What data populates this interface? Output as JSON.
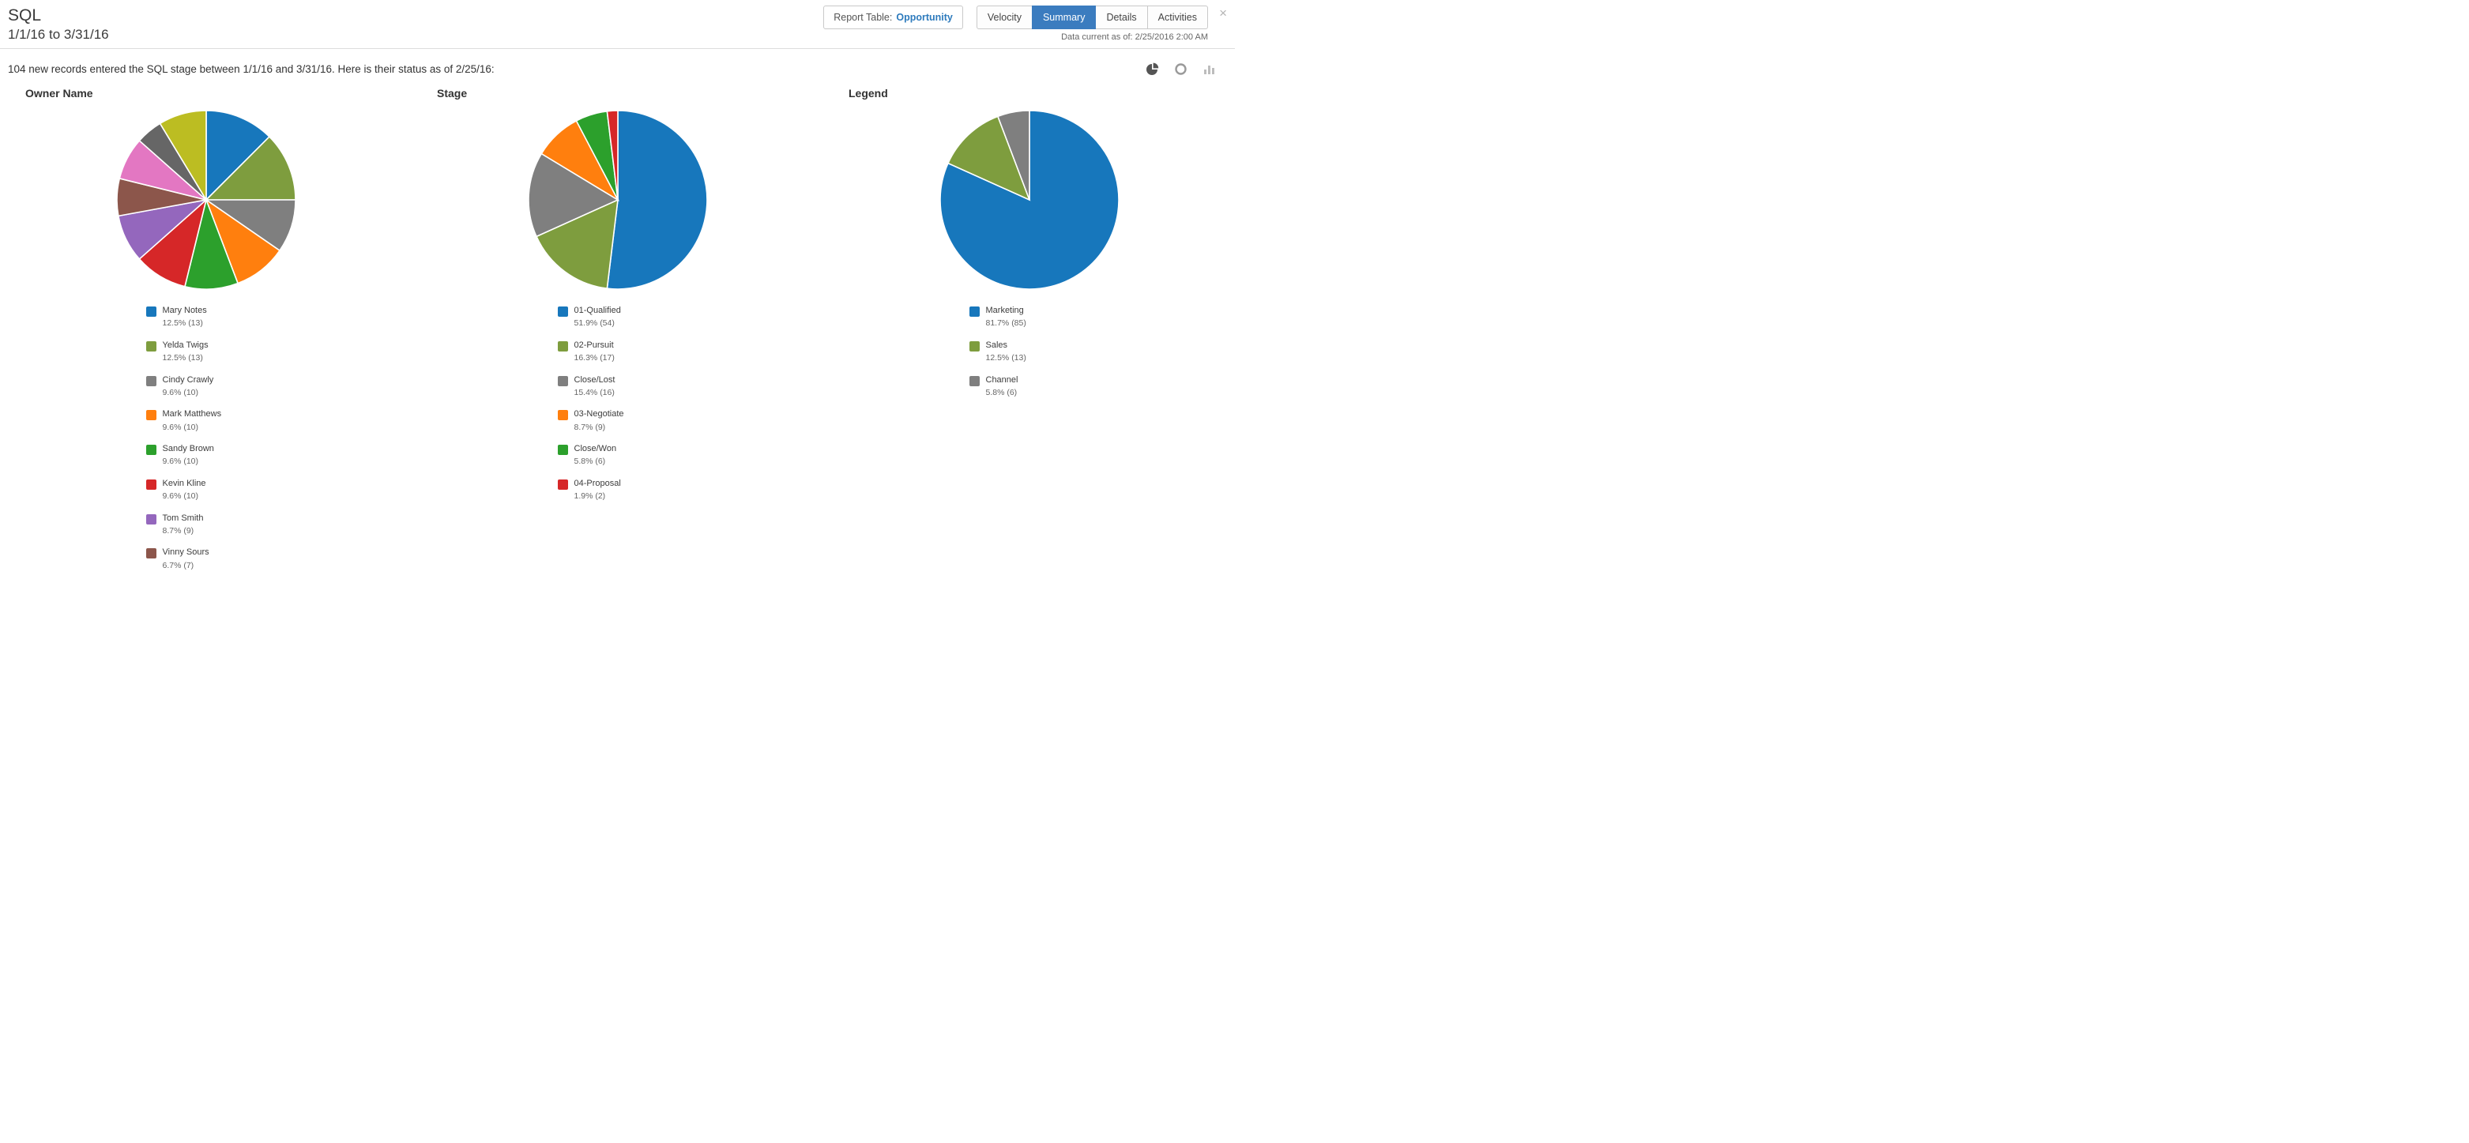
{
  "header": {
    "title": "SQL",
    "date_range": "1/1/16 to 3/31/16",
    "report_table": {
      "label": "Report Table:",
      "value": "Opportunity"
    },
    "tabs": [
      {
        "label": "Velocity",
        "active": false
      },
      {
        "label": "Summary",
        "active": true
      },
      {
        "label": "Details",
        "active": false
      },
      {
        "label": "Activities",
        "active": false
      }
    ],
    "data_current": "Data current as of: 2/25/2016 2:00 AM",
    "close_glyph": "×"
  },
  "status_line": "104 new records entered the SQL stage between 1/1/16 and 3/31/16. Here is their status as of 2/25/16:",
  "chart_toggles": [
    {
      "name": "pie-chart-icon",
      "active": true
    },
    {
      "name": "donut-chart-icon",
      "active": false
    },
    {
      "name": "bar-chart-icon",
      "active": false
    }
  ],
  "colors": {
    "accent_blue": "#2e7bbd",
    "active_tab_bg": "#3b7cbf"
  },
  "chart_data": [
    {
      "type": "pie",
      "title": "Owner Name",
      "total": 104,
      "slices": [
        {
          "label": "Mary Notes",
          "value_label": "12.5% (13)",
          "value": 13,
          "color": "#1777bc",
          "in_legend": true
        },
        {
          "label": "Yelda Twigs",
          "value_label": "12.5% (13)",
          "value": 13,
          "color": "#7e9d3e",
          "in_legend": true
        },
        {
          "label": "Cindy Crawly",
          "value_label": "9.6% (10)",
          "value": 10,
          "color": "#7f7f7f",
          "in_legend": true
        },
        {
          "label": "Mark Matthews",
          "value_label": "9.6% (10)",
          "value": 10,
          "color": "#ff7f0e",
          "in_legend": true
        },
        {
          "label": "Sandy Brown",
          "value_label": "9.6% (10)",
          "value": 10,
          "color": "#2ca02c",
          "in_legend": true
        },
        {
          "label": "Kevin Kline",
          "value_label": "9.6% (10)",
          "value": 10,
          "color": "#d62728",
          "in_legend": true
        },
        {
          "label": "Tom Smith",
          "value_label": "8.7% (9)",
          "value": 9,
          "color": "#9467bd",
          "in_legend": true
        },
        {
          "label": "Vinny Sours",
          "value_label": "6.7% (7)",
          "value": 7,
          "color": "#8c564b",
          "in_legend": true
        },
        {
          "label": "",
          "value_label": "",
          "value": 8,
          "color": "#e377c2",
          "in_legend": false
        },
        {
          "label": "",
          "value_label": "",
          "value": 5,
          "color": "#666666",
          "in_legend": false
        },
        {
          "label": "",
          "value_label": "",
          "value": 9,
          "color": "#bcbd22",
          "in_legend": false
        }
      ]
    },
    {
      "type": "pie",
      "title": "Stage",
      "total": 104,
      "slices": [
        {
          "label": "01-Qualified",
          "value_label": "51.9% (54)",
          "value": 54,
          "color": "#1777bc",
          "in_legend": true
        },
        {
          "label": "02-Pursuit",
          "value_label": "16.3% (17)",
          "value": 17,
          "color": "#7e9d3e",
          "in_legend": true
        },
        {
          "label": "Close/Lost",
          "value_label": "15.4% (16)",
          "value": 16,
          "color": "#7f7f7f",
          "in_legend": true
        },
        {
          "label": "03-Negotiate",
          "value_label": "8.7% (9)",
          "value": 9,
          "color": "#ff7f0e",
          "in_legend": true
        },
        {
          "label": "Close/Won",
          "value_label": "5.8% (6)",
          "value": 6,
          "color": "#2ca02c",
          "in_legend": true
        },
        {
          "label": "04-Proposal",
          "value_label": "1.9% (2)",
          "value": 2,
          "color": "#d62728",
          "in_legend": true
        }
      ]
    },
    {
      "type": "pie",
      "title": "Legend",
      "total": 104,
      "slices": [
        {
          "label": "Marketing",
          "value_label": "81.7% (85)",
          "value": 85,
          "color": "#1777bc",
          "in_legend": true
        },
        {
          "label": "Sales",
          "value_label": "12.5% (13)",
          "value": 13,
          "color": "#7e9d3e",
          "in_legend": true
        },
        {
          "label": "Channel",
          "value_label": "5.8% (6)",
          "value": 6,
          "color": "#7f7f7f",
          "in_legend": true
        }
      ]
    }
  ]
}
